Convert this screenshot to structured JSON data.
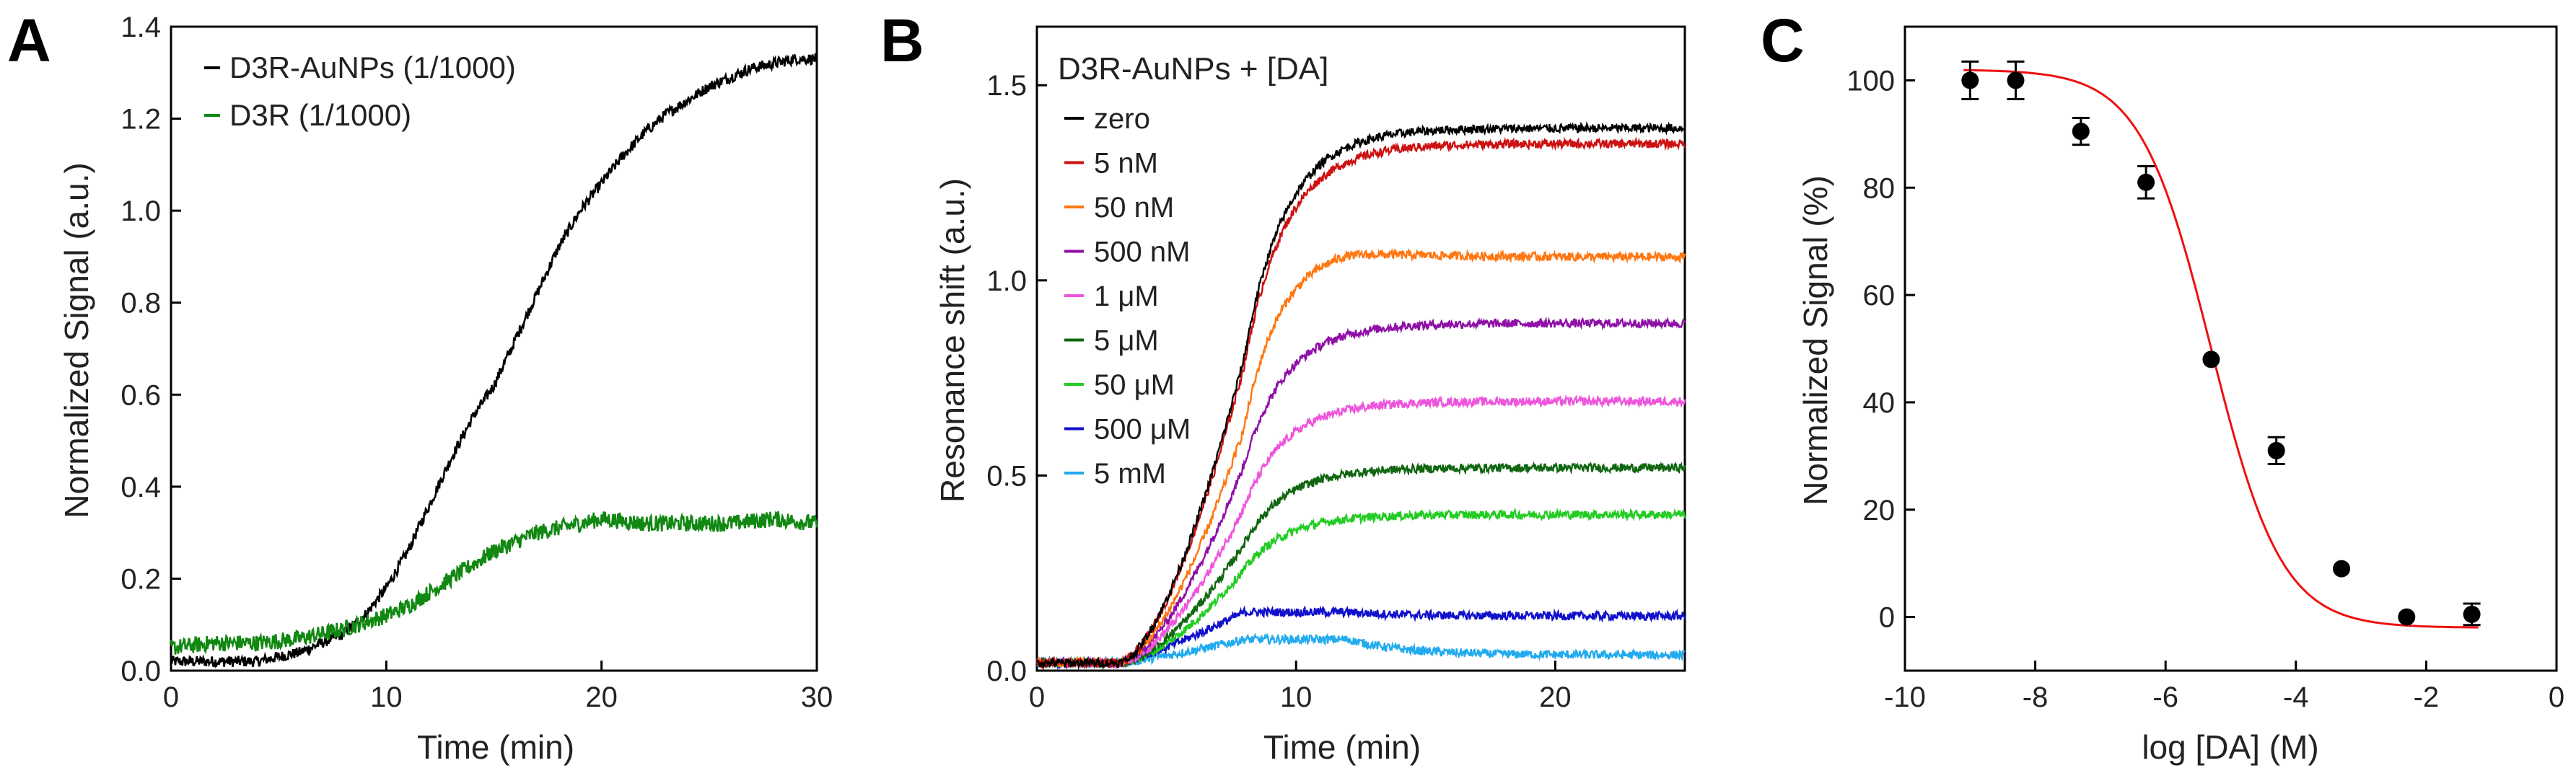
{
  "chart_data": [
    {
      "panel": "A",
      "type": "line",
      "xlabel": "Time (min)",
      "ylabel": "Normalized  Signal (a.u.)",
      "xlim": [
        0,
        30
      ],
      "ylim": [
        0,
        1.4
      ],
      "xticks": [
        "0",
        "10",
        "20",
        "30"
      ],
      "yticks": [
        "0.0",
        "0.2",
        "0.4",
        "0.6",
        "0.8",
        "1.0",
        "1.2",
        "1.4"
      ],
      "series": [
        {
          "name": "D3R-AuNPs (1/1000)",
          "color": "#000000",
          "x": [
            0,
            2,
            4,
            6,
            8,
            9,
            10,
            11,
            12,
            13,
            14,
            15,
            16,
            17,
            18,
            19,
            20,
            21,
            22,
            23,
            24,
            25,
            26,
            27,
            28,
            29,
            30
          ],
          "y": [
            0.02,
            0.02,
            0.02,
            0.04,
            0.08,
            0.12,
            0.18,
            0.26,
            0.36,
            0.46,
            0.55,
            0.62,
            0.72,
            0.82,
            0.92,
            1.0,
            1.06,
            1.12,
            1.17,
            1.21,
            1.24,
            1.27,
            1.29,
            1.31,
            1.32,
            1.33,
            1.33
          ],
          "noise": 0.012
        },
        {
          "name": "D3R (1/1000)",
          "color": "#118811",
          "x": [
            0,
            2,
            4,
            6,
            8,
            10,
            11,
            12,
            13,
            14,
            15,
            16,
            17,
            18,
            19,
            20,
            22,
            24,
            26,
            28,
            30
          ],
          "y": [
            0.05,
            0.06,
            0.06,
            0.07,
            0.09,
            0.12,
            0.14,
            0.17,
            0.2,
            0.23,
            0.26,
            0.28,
            0.3,
            0.31,
            0.32,
            0.33,
            0.32,
            0.32,
            0.32,
            0.33,
            0.32
          ],
          "noise": 0.018
        }
      ]
    },
    {
      "panel": "B",
      "type": "line",
      "title": "D3R-AuNPs + [DA]",
      "xlabel": "Time (min)",
      "ylabel": "Resonance shift (a.u.)",
      "xlim": [
        0,
        25
      ],
      "ylim": [
        0,
        1.65
      ],
      "xticks": [
        "0",
        "10",
        "20"
      ],
      "yticks": [
        "0.0",
        "0.5",
        "1.0",
        "1.5"
      ],
      "series": [
        {
          "name": "zero",
          "color": "#000000",
          "plateau": 1.39,
          "peak": 1.39
        },
        {
          "name": "5 nM",
          "color": "#cc1111",
          "plateau": 1.35,
          "peak": 1.35
        },
        {
          "name": "50 nM",
          "color": "#ff7711",
          "plateau": 1.06,
          "peak": 1.09
        },
        {
          "name": "500 nM",
          "color": "#8f10a6",
          "plateau": 0.89,
          "peak": 0.89
        },
        {
          "name": "1 μM",
          "color": "#ee55dd",
          "plateau": 0.69,
          "peak": 0.69
        },
        {
          "name": "5 μM",
          "color": "#116611",
          "plateau": 0.52,
          "peak": 0.52
        },
        {
          "name": "50 μM",
          "color": "#22cc22",
          "plateau": 0.4,
          "peak": 0.4
        },
        {
          "name": "500 μM",
          "color": "#1111cc",
          "plateau": 0.14,
          "peak": 0.15
        },
        {
          "name": "5 mM",
          "color": "#22aaee",
          "plateau": 0.04,
          "peak": 0.08
        }
      ]
    },
    {
      "panel": "C",
      "type": "scatter",
      "xlabel": "log [DA] (M)",
      "ylabel": "Normalized Signal (%)",
      "xlim": [
        -10,
        0
      ],
      "ylim": [
        -10,
        110
      ],
      "xticks": [
        "-10",
        "-8",
        "-6",
        "-4",
        "-2",
        "0"
      ],
      "yticks": [
        "0",
        "20",
        "40",
        "60",
        "80",
        "100"
      ],
      "points": {
        "x": [
          -9,
          -8.3,
          -7.3,
          -6.3,
          -5.3,
          -4.3,
          -3.3,
          -2.3,
          -1.3
        ],
        "y": [
          100,
          100,
          90.5,
          81,
          48,
          31,
          9,
          0,
          0.5
        ],
        "err": [
          3.5,
          3.5,
          2.5,
          3,
          0,
          2.5,
          0,
          0,
          2
        ]
      },
      "fit": {
        "type": "sigmoid",
        "color": "#ee1111",
        "top": 102,
        "bottom": -2,
        "log_ic50": -5.3,
        "hill": 0.8
      }
    }
  ]
}
